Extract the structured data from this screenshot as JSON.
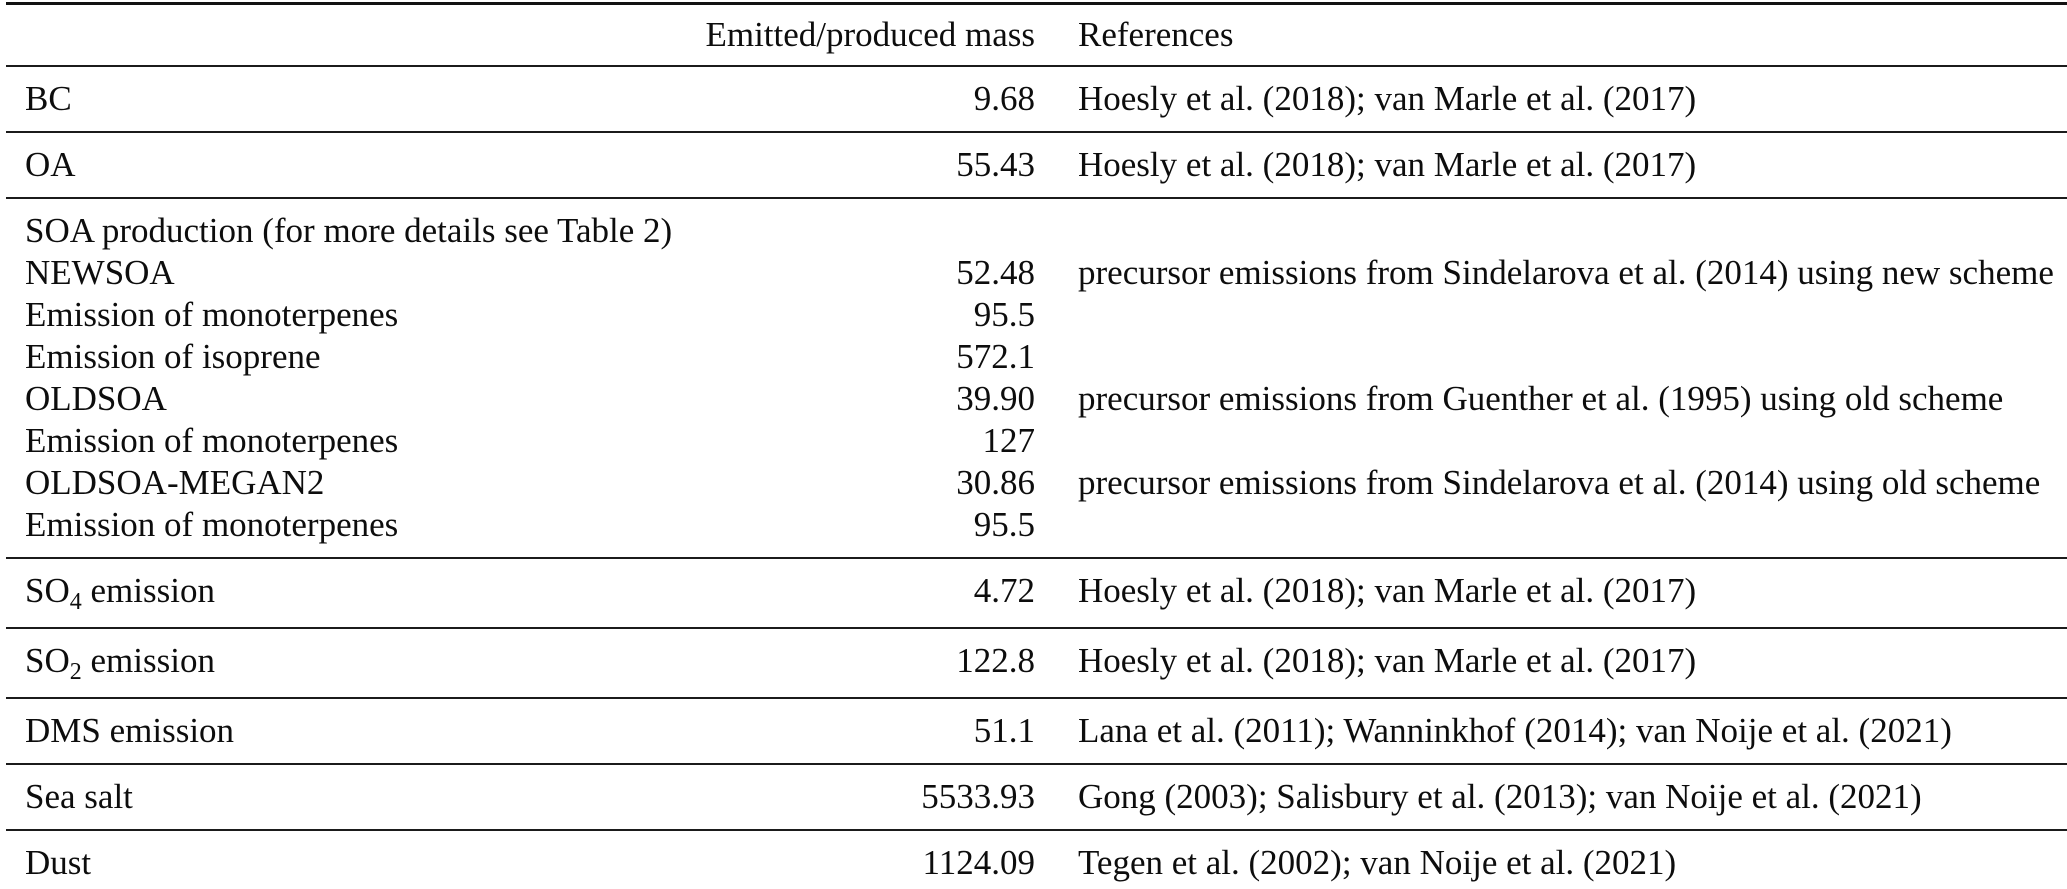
{
  "table": {
    "columns": {
      "species": "",
      "mass": "Emitted/produced mass",
      "references": "References"
    },
    "sections": [
      {
        "rows": [
          {
            "label": "BC",
            "mass": "9.68",
            "refs": "Hoesly et al. (2018); van Marle et al. (2017)"
          }
        ]
      },
      {
        "rows": [
          {
            "label": "OA",
            "mass": "55.43",
            "refs": "Hoesly et al. (2018); van Marle et al. (2017)"
          }
        ]
      },
      {
        "rows": [
          {
            "label": "SOA production (for more details see Table 2)",
            "mass": "",
            "refs": ""
          },
          {
            "label": "NEWSOA",
            "mass": "52.48",
            "refs": "precursor emissions from Sindelarova et al. (2014) using new scheme"
          },
          {
            "label": "Emission of monoterpenes",
            "mass": "95.5",
            "refs": ""
          },
          {
            "label": "Emission of isoprene",
            "mass": "572.1",
            "refs": ""
          },
          {
            "label": "OLDSOA",
            "mass": "39.90",
            "refs": "precursor emissions from Guenther et al. (1995) using old scheme"
          },
          {
            "label": "Emission of monoterpenes",
            "mass": "127",
            "refs": ""
          },
          {
            "label": "OLDSOA-MEGAN2",
            "mass": "30.86",
            "refs": "precursor emissions from Sindelarova et al. (2014) using old scheme"
          },
          {
            "label": "Emission of monoterpenes",
            "mass": "95.5",
            "refs": ""
          }
        ]
      },
      {
        "rows": [
          {
            "label_pre": "SO",
            "label_sub": "4",
            "label_post": " emission",
            "mass": "4.72",
            "refs": "Hoesly et al. (2018); van Marle et al. (2017)"
          }
        ]
      },
      {
        "rows": [
          {
            "label_pre": "SO",
            "label_sub": "2",
            "label_post": " emission",
            "mass": "122.8",
            "refs": "Hoesly et al. (2018); van Marle et al. (2017)"
          }
        ]
      },
      {
        "rows": [
          {
            "label": "DMS emission",
            "mass": "51.1",
            "refs": "Lana et al. (2011); Wanninkhof (2014); van Noije et al. (2021)"
          }
        ]
      },
      {
        "rows": [
          {
            "label": "Sea salt",
            "mass": "5533.93",
            "refs": "Gong (2003); Salisbury et al. (2013); van Noije et al. (2021)"
          }
        ]
      },
      {
        "rows": [
          {
            "label": "Dust",
            "mass": "1124.09",
            "refs": "Tegen et al. (2002); van Noije et al. (2021)"
          }
        ]
      }
    ]
  }
}
